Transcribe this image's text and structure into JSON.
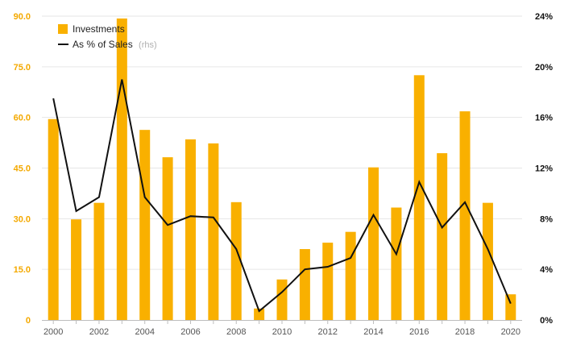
{
  "chart_data": {
    "type": "bar",
    "x": [
      2000,
      2001,
      2002,
      2003,
      2004,
      2005,
      2006,
      2007,
      2008,
      2009,
      2010,
      2011,
      2012,
      2013,
      2014,
      2015,
      2016,
      2017,
      2018,
      2019,
      2020
    ],
    "x_tick_labels": [
      "2000",
      "2002",
      "2004",
      "2006",
      "2008",
      "2010",
      "2012",
      "2014",
      "2016",
      "2018",
      "2020"
    ],
    "series": [
      {
        "name": "Investments",
        "type": "bar",
        "axis": "left",
        "color": "#f9b000",
        "values": [
          59.5,
          29.8,
          34.7,
          89.3,
          56.3,
          48.2,
          53.5,
          52.3,
          34.9,
          3.4,
          12.0,
          21.0,
          22.9,
          26.1,
          45.2,
          33.3,
          72.5,
          49.4,
          61.8,
          34.7,
          7.6
        ]
      },
      {
        "name": "As % of Sales",
        "name_suffix": "(rhs)",
        "type": "line",
        "axis": "right",
        "color": "#111111",
        "values": [
          17.5,
          8.6,
          9.7,
          19.0,
          9.7,
          7.5,
          8.2,
          8.1,
          5.6,
          0.7,
          2.2,
          4.0,
          4.2,
          4.9,
          8.3,
          5.2,
          10.9,
          7.3,
          9.3,
          5.6,
          1.3
        ]
      }
    ],
    "y_left": {
      "ticks": [
        "0",
        "15.0",
        "30.0",
        "45.0",
        "60.0",
        "75.0",
        "90.0"
      ],
      "ylim": [
        0,
        90
      ],
      "color": "#f4a900"
    },
    "y_right": {
      "ticks": [
        "0%",
        "4%",
        "8%",
        "12%",
        "16%",
        "20%",
        "24%"
      ],
      "ylim": [
        0,
        24
      ],
      "color": "#111111"
    },
    "grid": true,
    "legend_position": "top-left",
    "title": "",
    "xlabel": "",
    "ylabel": ""
  }
}
